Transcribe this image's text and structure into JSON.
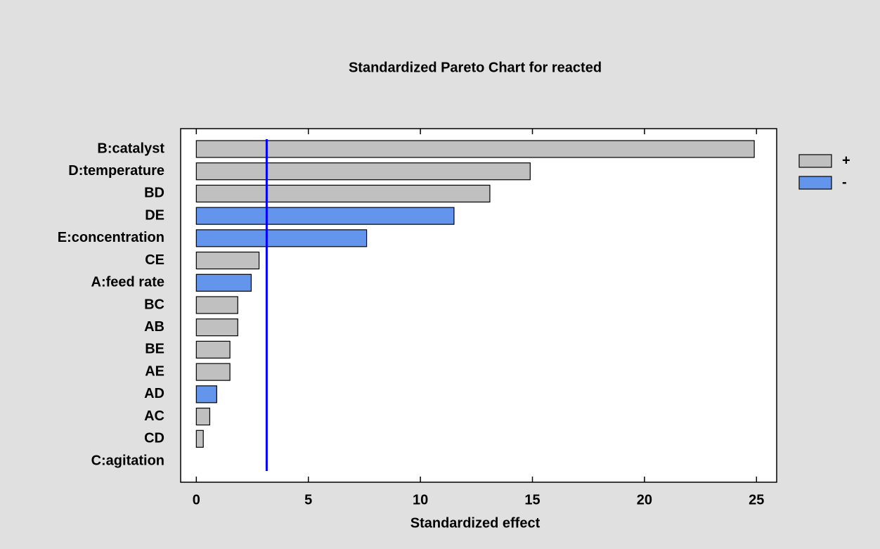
{
  "chart_data": {
    "type": "bar",
    "orientation": "horizontal",
    "title": "Standardized Pareto Chart for reacted",
    "x_label": "Standardized effect",
    "categories": [
      "B:catalyst",
      "D:temperature",
      "BD",
      "DE",
      "E:concentration",
      "CE",
      "A:feed rate",
      "BC",
      "AB",
      "BE",
      "AE",
      "AD",
      "AC",
      "CD",
      "C:agitation"
    ],
    "series": [
      {
        "name": "+",
        "color": "#c0c0c0",
        "values": [
          24.9,
          14.9,
          13.1,
          null,
          null,
          2.8,
          null,
          1.85,
          1.85,
          1.5,
          1.5,
          null,
          0.6,
          0.31,
          0
        ]
      },
      {
        "name": "-",
        "color": "#6495ed",
        "values": [
          null,
          null,
          null,
          11.5,
          7.6,
          null,
          2.45,
          null,
          null,
          null,
          null,
          0.91,
          null,
          null,
          null
        ]
      }
    ],
    "reference_line": {
      "value": 3.14,
      "color": "#0000ff"
    },
    "xlim": [
      -0.7,
      25.9
    ],
    "xticks": [
      0,
      5,
      10,
      15,
      20,
      25
    ],
    "legend": "right"
  }
}
